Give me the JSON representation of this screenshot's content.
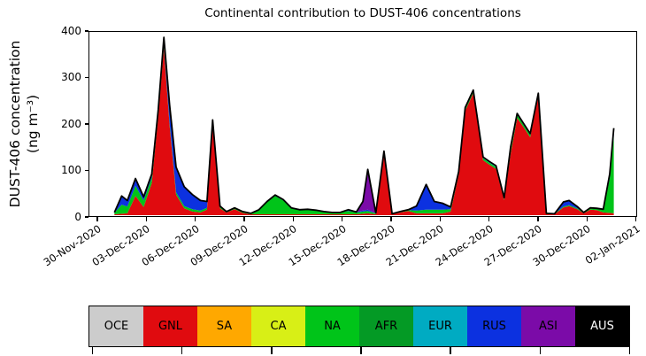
{
  "title": "Continental contribution to DUST-406 concentrations",
  "y_axis": {
    "label_line1": "DUST-406 concentration",
    "label_line2": "(ng m⁻³)"
  },
  "chart_data": {
    "type": "area",
    "subtype": "stacked",
    "title": "Continental contribution to DUST-406 concentrations",
    "ylabel": "DUST-406 concentration (ng m⁻³)",
    "xlabel": "",
    "grid": false,
    "legend_position": "bottom-bar",
    "ylim": [
      0,
      400
    ],
    "yticks": [
      0,
      100,
      200,
      300,
      400
    ],
    "xlim_days": [
      -0.54,
      33.08
    ],
    "x_unit": "days after 30-Nov-2020",
    "xtick_days": [
      0,
      3,
      6,
      9,
      12,
      15,
      18,
      21,
      24,
      27,
      30,
      33
    ],
    "xtick_labels": [
      "30-Nov-2020",
      "03-Dec-2020",
      "06-Dec-2020",
      "09-Dec-2020",
      "12-Dec-2020",
      "15-Dec-2020",
      "18-Dec-2020",
      "21-Dec-2020",
      "24-Dec-2020",
      "27-Dec-2020",
      "30-Dec-2020",
      "02-Jan-2021"
    ],
    "outline_color": "#000000",
    "x": [
      1.0,
      1.45,
      1.8,
      2.3,
      2.8,
      3.3,
      3.7,
      4.05,
      4.4,
      4.8,
      5.3,
      5.8,
      6.3,
      6.7,
      7.05,
      7.5,
      7.9,
      8.4,
      8.9,
      9.4,
      9.9,
      10.4,
      10.9,
      11.4,
      11.9,
      12.4,
      12.9,
      13.4,
      13.9,
      14.4,
      14.9,
      15.4,
      15.9,
      16.3,
      16.6,
      17.1,
      17.6,
      18.1,
      18.6,
      19.1,
      19.6,
      20.2,
      20.7,
      21.2,
      21.7,
      22.2,
      22.6,
      23.1,
      23.7,
      24.1,
      24.5,
      25.0,
      25.4,
      25.8,
      26.2,
      26.6,
      27.1,
      27.6,
      28.1,
      28.65,
      29.0,
      29.5,
      29.9,
      30.3,
      30.7,
      31.1,
      31.5,
      31.75
    ],
    "series": [
      {
        "name": "OCE",
        "color": "#cccccc",
        "label_color": "#000000"
      },
      {
        "name": "GNL",
        "color": "#e00b0f",
        "label_color": "#000000",
        "values": [
          2,
          3,
          4,
          42,
          18,
          70,
          215,
          365,
          195,
          45,
          15,
          8,
          6,
          12,
          200,
          15,
          6,
          13,
          5,
          2,
          2,
          2,
          2,
          2,
          2,
          2,
          2,
          2,
          2,
          2,
          2,
          2,
          2,
          3,
          4,
          2,
          135,
          2,
          6,
          9,
          4,
          4,
          4,
          4,
          8,
          88,
          228,
          266,
          120,
          110,
          101,
          33,
          135,
          212,
          192,
          170,
          260,
          2,
          2,
          17,
          20,
          13,
          4,
          12,
          11,
          6,
          5,
          4
        ]
      },
      {
        "name": "SA",
        "color": "#ffa800",
        "label_color": "#000000"
      },
      {
        "name": "CA",
        "color": "#d8ef16",
        "label_color": "#000000"
      },
      {
        "name": "NA",
        "color": "#00c419",
        "label_color": "#000000",
        "values": [
          3,
          20,
          15,
          22,
          14,
          12,
          8,
          5,
          5,
          5,
          5,
          5,
          4,
          4,
          3,
          3,
          2,
          2,
          2,
          2,
          9,
          27,
          40,
          30,
          13,
          10,
          11,
          9,
          6,
          4,
          4,
          7,
          4,
          5,
          5,
          2,
          3,
          1,
          2,
          2,
          6,
          8,
          8,
          8,
          5,
          4,
          4,
          4,
          4,
          4,
          4,
          3,
          12,
          7,
          5,
          5,
          4,
          1,
          1,
          2,
          2,
          2,
          2,
          3,
          3,
          6,
          75,
          168
        ]
      },
      {
        "name": "AFR",
        "color": "#049a25",
        "label_color": "#000000"
      },
      {
        "name": "EUR",
        "color": "#00abc2",
        "label_color": "#000000",
        "values": [
          0,
          0,
          0,
          0,
          0,
          0,
          0,
          0,
          0,
          0,
          0,
          0,
          0,
          0,
          0,
          0,
          0,
          0,
          0,
          0,
          0,
          0,
          0,
          0,
          0,
          0,
          0,
          0,
          0,
          0,
          0,
          0,
          0,
          0,
          0,
          0,
          0,
          0,
          0,
          0,
          0,
          0,
          0,
          0,
          0,
          0,
          0,
          0,
          2,
          2,
          2,
          1,
          2,
          2,
          2,
          2,
          1,
          0,
          0,
          0,
          0,
          0,
          0,
          0,
          0,
          0,
          0,
          0
        ]
      },
      {
        "name": "RUS",
        "color": "#0c31e0",
        "label_color": "#000000",
        "values": [
          1,
          19,
          13,
          16,
          8,
          8,
          7,
          18,
          40,
          55,
          42,
          32,
          22,
          14,
          5,
          2,
          0,
          1,
          1,
          0,
          1,
          1,
          2,
          2,
          1,
          0,
          0,
          0,
          0,
          0,
          0,
          3,
          1,
          2,
          3,
          0,
          2,
          0,
          0,
          1,
          10,
          55,
          18,
          14,
          5,
          3,
          3,
          3,
          1,
          1,
          1,
          1,
          1,
          1,
          1,
          1,
          1,
          1,
          0,
          10,
          10,
          4,
          0,
          1,
          1,
          1,
          10,
          18
        ]
      },
      {
        "name": "ASI",
        "color": "#7b0ba8",
        "label_color": "#000000",
        "values": [
          0,
          0,
          0,
          0,
          0,
          0,
          0,
          0,
          0,
          0,
          0,
          0,
          0,
          0,
          0,
          0,
          0,
          0,
          0,
          0,
          0,
          0,
          0,
          0,
          0,
          0,
          0,
          0,
          0,
          0,
          0,
          0,
          0,
          20,
          88,
          1,
          0,
          0,
          0,
          0,
          0,
          0,
          0,
          0,
          0,
          0,
          0,
          0,
          0,
          0,
          0,
          0,
          0,
          0,
          0,
          0,
          0,
          0,
          0,
          0,
          0,
          0,
          0,
          0,
          0,
          0,
          0,
          0
        ]
      },
      {
        "name": "AUS",
        "color": "#000000",
        "label_color": "#ffffff"
      }
    ]
  }
}
